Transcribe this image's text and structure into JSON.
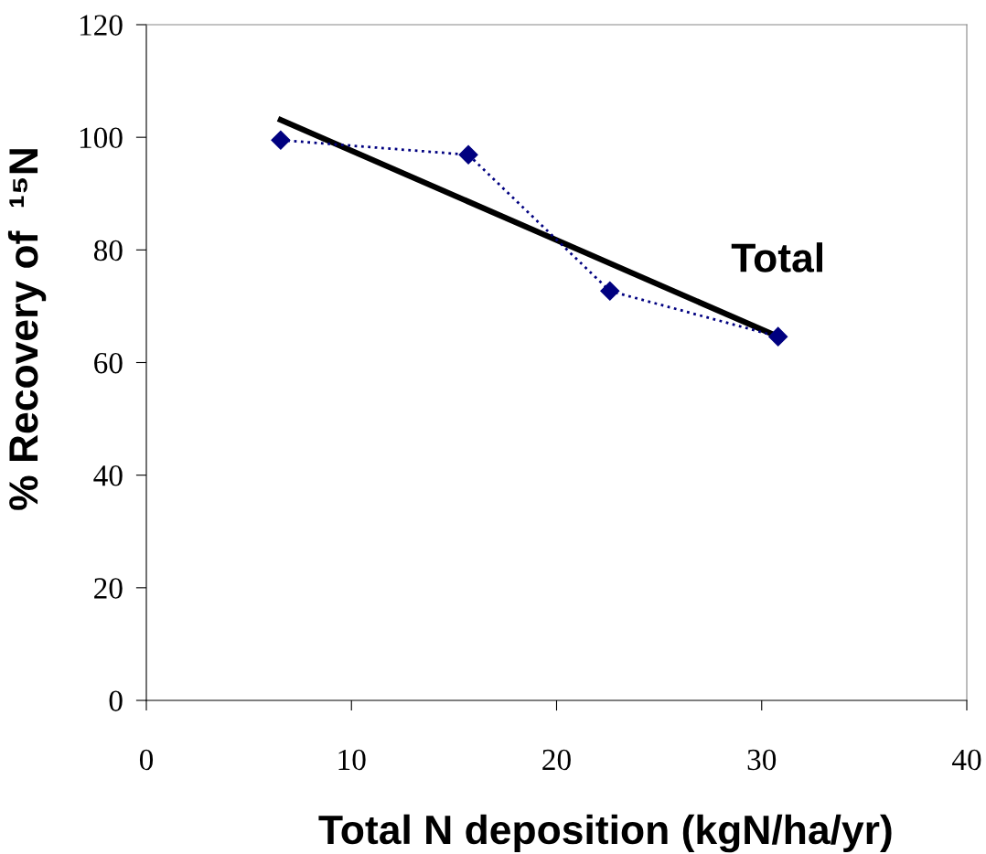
{
  "chart_data": {
    "type": "line",
    "xlabel": "Total N deposition (kgN/ha/yr)",
    "ylabel": "% Recovery of  ¹⁵N",
    "xlim": [
      0,
      40
    ],
    "xticks": [
      0,
      10,
      20,
      30,
      40
    ],
    "ylim": [
      0,
      120
    ],
    "yticks": [
      0,
      20,
      40,
      60,
      80,
      100,
      120
    ],
    "grid": false,
    "legend": false,
    "series": [
      {
        "name": "Total",
        "color": "#000080",
        "marker": "diamond",
        "line_style": "dotted",
        "x": [
          6.55,
          15.7,
          22.6,
          30.8
        ],
        "values": [
          99.5,
          96.9,
          72.7,
          64.6
        ]
      },
      {
        "color": "#000000",
        "marker": "none",
        "line_style": "solid",
        "x": [
          6.55,
          30.8
        ],
        "values": [
          103.1,
          64.6
        ]
      }
    ]
  }
}
